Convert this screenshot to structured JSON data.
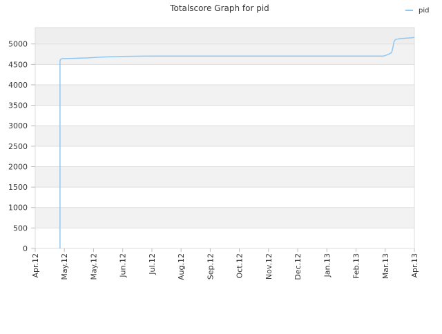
{
  "chart_data": {
    "type": "line",
    "title": "Totalscore Graph for pid",
    "xlabel": "",
    "ylabel": "",
    "x_ticks": [
      "Apr.12",
      "May.12",
      "May.12",
      "Jun.12",
      "Jul.12",
      "Aug.12",
      "Sep.12",
      "Oct.12",
      "Nov.12",
      "Dec.12",
      "Jan.13",
      "Feb.13",
      "Mar.13",
      "Apr.13"
    ],
    "y_ticks": [
      0,
      500,
      1000,
      1500,
      2000,
      2500,
      3000,
      3500,
      4000,
      4500,
      5000
    ],
    "ylim": [
      0,
      5400
    ],
    "xlim": [
      0,
      13
    ],
    "grid": "horizontal bands",
    "legend_position": "top-right",
    "colors": {
      "series": "#8fc7f4",
      "band_dark": "#f2f2f2",
      "band_top": "#eeeeee",
      "grid": "#dddddd",
      "text": "#333333"
    },
    "series": [
      {
        "name": "pid",
        "points": [
          [
            0.85,
            0
          ],
          [
            0.85,
            4600
          ],
          [
            0.88,
            4630
          ],
          [
            0.93,
            4640
          ],
          [
            1.2,
            4645
          ],
          [
            1.45,
            4650
          ],
          [
            1.8,
            4660
          ],
          [
            2.05,
            4670
          ],
          [
            2.25,
            4680
          ],
          [
            2.5,
            4685
          ],
          [
            2.8,
            4690
          ],
          [
            3.0,
            4695
          ],
          [
            3.4,
            4700
          ],
          [
            4.0,
            4705
          ],
          [
            5.0,
            4705
          ],
          [
            6.0,
            4705
          ],
          [
            7.0,
            4705
          ],
          [
            8.0,
            4705
          ],
          [
            9.0,
            4705
          ],
          [
            10.0,
            4705
          ],
          [
            11.0,
            4705
          ],
          [
            11.95,
            4705
          ],
          [
            12.05,
            4730
          ],
          [
            12.15,
            4760
          ],
          [
            12.22,
            4790
          ],
          [
            12.26,
            4900
          ],
          [
            12.3,
            5050
          ],
          [
            12.35,
            5110
          ],
          [
            12.5,
            5130
          ],
          [
            12.7,
            5140
          ],
          [
            12.9,
            5150
          ],
          [
            13.0,
            5160
          ]
        ]
      }
    ]
  }
}
